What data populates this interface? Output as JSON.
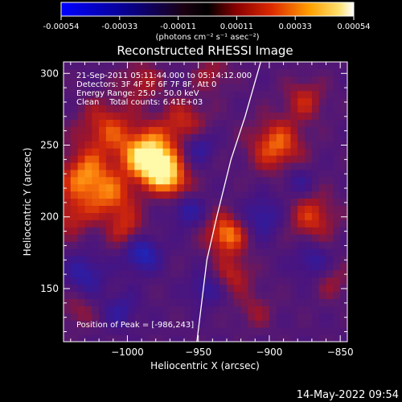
{
  "chart_data": {
    "type": "heatmap",
    "title": "Reconstructed RHESSI Image",
    "colorbar": {
      "ticks": [
        "-0.00054",
        "-0.00033",
        "-0.00011",
        "0.00011",
        "0.00033",
        "0.00054"
      ],
      "unit_label": "(photons cm⁻² s⁻¹ asec⁻²)",
      "range": [
        -0.00054,
        0.00054
      ]
    },
    "xlabel": "Heliocentric X (arcsec)",
    "ylabel": "Heliocentric Y (arcsec)",
    "xlim": [
      -1045,
      -845
    ],
    "ylim": [
      113,
      308
    ],
    "xticks": [
      -1000,
      -950,
      -900,
      -850
    ],
    "yticks": [
      150,
      200,
      250,
      300
    ],
    "info_lines": [
      "21-Sep-2011 05:11:44.000 to 05:14:12.000",
      "Detectors: 3F 4F 5F 6F 7F 8F, Att 0",
      "Energy Range: 25.0 - 50.0 keV",
      "Clean    Total counts: 6.41E+03"
    ],
    "peak_label": "Position of Peak = [-986,243]",
    "limb": [
      [
        -951,
        113
      ],
      [
        -944,
        170
      ],
      [
        -937,
        200
      ],
      [
        -927,
        240
      ],
      [
        -917,
        270
      ],
      [
        -906,
        308
      ]
    ],
    "sources": [
      {
        "x": -986,
        "y": 243,
        "amp": 1.0,
        "r": 13
      },
      {
        "x": -975,
        "y": 232,
        "amp": 0.65,
        "r": 10
      },
      {
        "x": -1015,
        "y": 262,
        "amp": 0.55,
        "r": 14
      },
      {
        "x": -1030,
        "y": 228,
        "amp": 0.75,
        "r": 13
      },
      {
        "x": -1010,
        "y": 212,
        "amp": 0.55,
        "r": 12
      },
      {
        "x": -1040,
        "y": 200,
        "amp": 0.45,
        "r": 10
      },
      {
        "x": -1000,
        "y": 190,
        "amp": 0.45,
        "r": 9
      },
      {
        "x": -960,
        "y": 265,
        "amp": 0.5,
        "r": 12
      },
      {
        "x": -965,
        "y": 222,
        "amp": 0.45,
        "r": 8
      },
      {
        "x": -930,
        "y": 188,
        "amp": 0.8,
        "r": 10
      },
      {
        "x": -925,
        "y": 160,
        "amp": 0.45,
        "r": 9
      },
      {
        "x": -895,
        "y": 250,
        "amp": 0.7,
        "r": 13
      },
      {
        "x": -875,
        "y": 282,
        "amp": 0.45,
        "r": 10
      },
      {
        "x": -870,
        "y": 200,
        "amp": 0.55,
        "r": 12
      },
      {
        "x": -855,
        "y": 155,
        "amp": 0.3,
        "r": 9
      },
      {
        "x": -1035,
        "y": 135,
        "amp": 0.3,
        "r": 9
      },
      {
        "x": -910,
        "y": 135,
        "amp": 0.3,
        "r": 9
      },
      {
        "x": -990,
        "y": 295,
        "amp": 0.4,
        "r": 10
      },
      {
        "x": -940,
        "y": 300,
        "amp": 0.35,
        "r": 9
      }
    ],
    "sinks": [
      {
        "x": -990,
        "y": 175,
        "amp": 0.65,
        "r": 9
      },
      {
        "x": -950,
        "y": 250,
        "amp": 0.5,
        "r": 8
      },
      {
        "x": -905,
        "y": 200,
        "amp": 0.45,
        "r": 10
      },
      {
        "x": -1030,
        "y": 160,
        "amp": 0.45,
        "r": 10
      },
      {
        "x": -945,
        "y": 150,
        "amp": 0.4,
        "r": 8
      },
      {
        "x": -870,
        "y": 170,
        "amp": 0.4,
        "r": 9
      },
      {
        "x": -880,
        "y": 225,
        "amp": 0.35,
        "r": 8
      },
      {
        "x": -958,
        "y": 205,
        "amp": 0.45,
        "r": 8
      },
      {
        "x": -1005,
        "y": 135,
        "amp": 0.35,
        "r": 9
      }
    ]
  },
  "timestamp": "14-May-2022 09:54"
}
